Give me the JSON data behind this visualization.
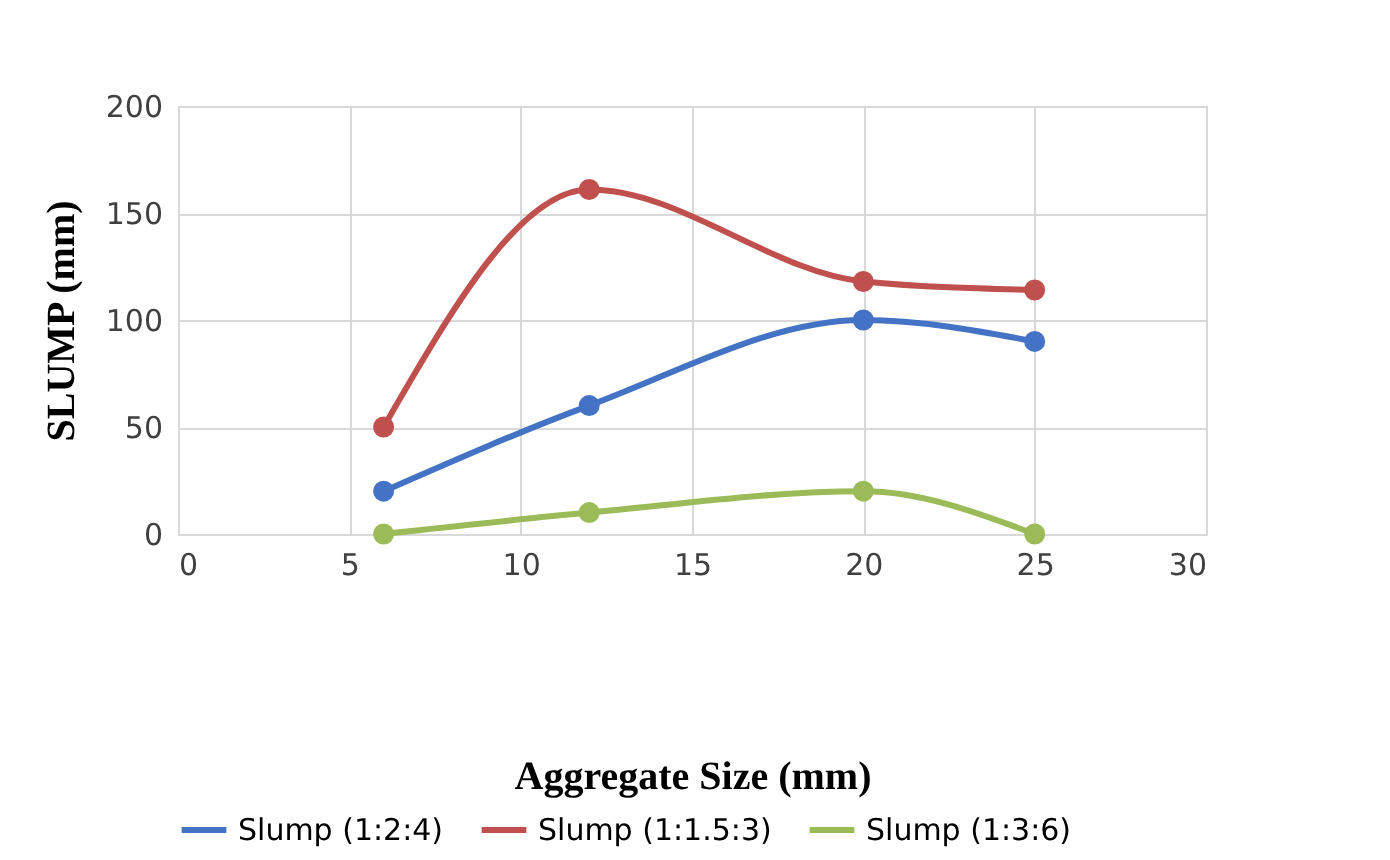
{
  "chart_data": {
    "type": "line",
    "xlabel": "Aggregate Size (mm)",
    "ylabel": "SLUMP (mm)",
    "x": [
      6,
      12,
      20,
      25
    ],
    "series": [
      {
        "name": "Slump (1:2:4)",
        "color": "#4472c4",
        "values": [
          20,
          60,
          100,
          90
        ]
      },
      {
        "name": "Slump (1:1.5:3)",
        "color": "#c0504d",
        "values": [
          50,
          161,
          118,
          114
        ]
      },
      {
        "name": "Slump (1:3:6)",
        "color": "#9bbb59",
        "values": [
          0,
          10,
          20,
          0
        ]
      }
    ],
    "xlim": [
      0,
      30
    ],
    "xticks": [
      0,
      5,
      10,
      15,
      20,
      25,
      30
    ],
    "ylim": [
      0,
      200
    ],
    "yticks": [
      0,
      50,
      100,
      150,
      200
    ],
    "grid": true,
    "legend": "bottom",
    "marker": "circle",
    "line_style": "solid"
  }
}
